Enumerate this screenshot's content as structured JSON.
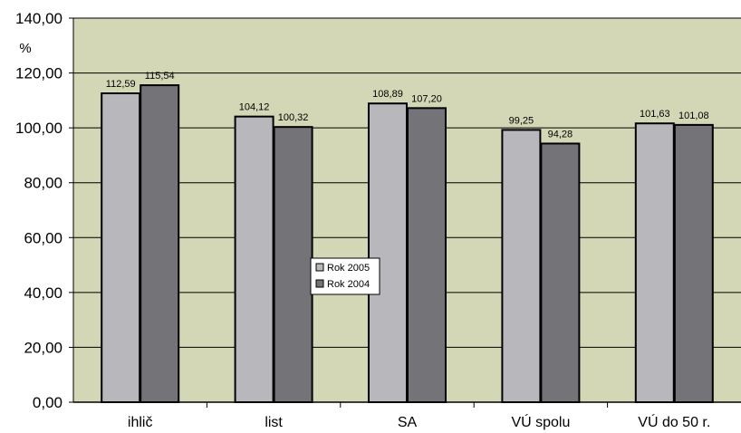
{
  "chart_data": {
    "type": "bar",
    "title": "",
    "xlabel": "",
    "ylabel": "%",
    "ylim": [
      0,
      140
    ],
    "ytick_labels": [
      "0,00",
      "20,00",
      "40,00",
      "60,00",
      "80,00",
      "100,00",
      "120,00",
      "140,00"
    ],
    "categories": [
      "ihlič",
      "list",
      "SA",
      "VÚ spolu",
      "VÚ do 50 r."
    ],
    "series": [
      {
        "name": "Rok 2005",
        "values": [
          112.59,
          104.12,
          108.89,
          99.25,
          101.63
        ],
        "labels": [
          "112,59",
          "104,12",
          "108,89",
          "99,25",
          "101,63"
        ],
        "color": "#b8b8bc"
      },
      {
        "name": "Rok 2004",
        "values": [
          115.54,
          100.32,
          107.2,
          94.28,
          101.08
        ],
        "labels": [
          "115,54",
          "100,32",
          "107,20",
          "94,28",
          "101,08"
        ],
        "color": "#737378"
      }
    ],
    "grid": true,
    "legend": "center",
    "plot_background": "#d3d7b6"
  }
}
